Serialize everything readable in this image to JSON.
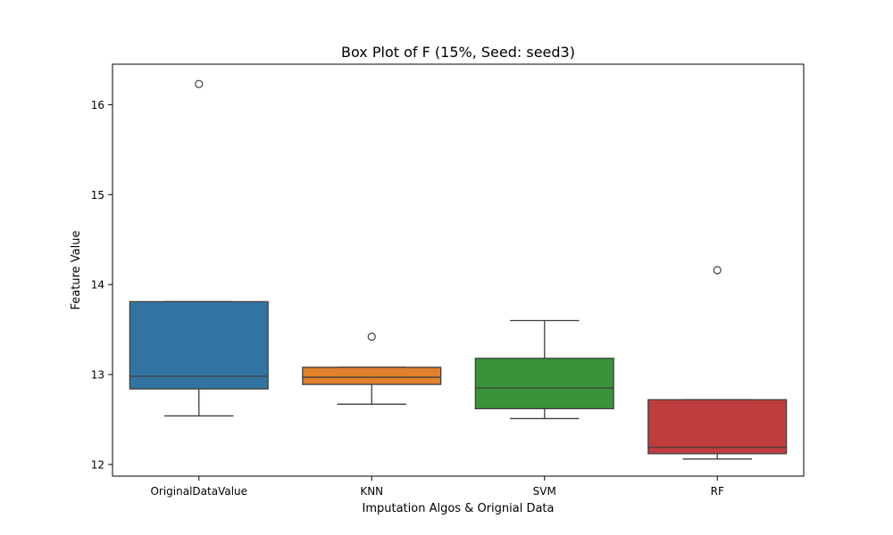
{
  "chart_data": {
    "type": "box",
    "title": "Box Plot of F (15%, Seed: seed3)",
    "xlabel": "Imputation Algos & Orignial Data",
    "ylabel": "Feature Value",
    "ylim": [
      11.87,
      16.45
    ],
    "yticks": [
      12,
      13,
      14,
      15,
      16
    ],
    "grid": false,
    "categories": [
      "OriginalDataValue",
      "KNN",
      "SVM",
      "RF"
    ],
    "boxes": [
      {
        "category": "OriginalDataValue",
        "color": "#3274a1",
        "whisker_low": 12.54,
        "q1": 12.84,
        "median": 12.98,
        "q3": 13.81,
        "whisker_high": 13.81,
        "outliers": [
          16.23
        ]
      },
      {
        "category": "KNN",
        "color": "#e1812c",
        "whisker_low": 12.67,
        "q1": 12.89,
        "median": 12.97,
        "q3": 13.08,
        "whisker_high": 13.08,
        "outliers": [
          13.42
        ]
      },
      {
        "category": "SVM",
        "color": "#3a923a",
        "whisker_low": 12.51,
        "q1": 12.62,
        "median": 12.85,
        "q3": 13.18,
        "whisker_high": 13.6,
        "outliers": []
      },
      {
        "category": "RF",
        "color": "#c03d3e",
        "whisker_low": 12.06,
        "q1": 12.12,
        "median": 12.19,
        "q3": 12.72,
        "whisker_high": 12.72,
        "outliers": [
          14.16
        ]
      }
    ]
  }
}
